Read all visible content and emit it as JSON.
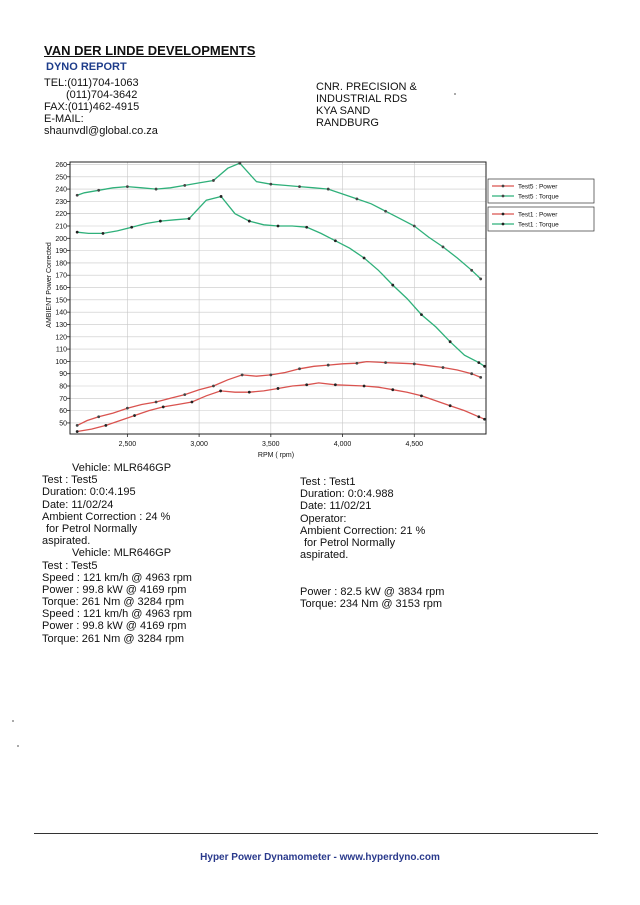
{
  "header": {
    "company": "VAN DER LINDE DEVELOPMENTS",
    "report_title": "DYNO REPORT",
    "contact_lines": [
      "TEL:(011)704-1063",
      "(011)704-3642",
      "FAX:(011)462-4915",
      "E-MAIL:",
      "shaunvdl@global.co.za"
    ],
    "address_lines": [
      "CNR. PRECISION &",
      "INDUSTRIAL RDS",
      "KYA SAND",
      "RANDBURG"
    ]
  },
  "chart_data": {
    "type": "line",
    "title": "",
    "xlabel": "RPM ( rpm)",
    "ylabel": "AMBIENT Power Corrected",
    "xlim": [
      2100,
      5000
    ],
    "ylim": [
      41,
      262
    ],
    "x_ticks": [
      2500,
      3000,
      3500,
      4000,
      4500
    ],
    "x_tick_labels": [
      "2,500",
      "3,000",
      "3,500",
      "4,000",
      "4,500"
    ],
    "y_ticks": [
      50,
      60,
      70,
      80,
      90,
      100,
      110,
      120,
      130,
      140,
      150,
      160,
      170,
      180,
      190,
      200,
      210,
      220,
      230,
      240,
      250,
      260
    ],
    "grid": true,
    "legend_position": "top-right",
    "series": [
      {
        "name": "Test5 : Power",
        "legend_group": "Test5",
        "color": "#d9534f",
        "marker_color": "#444444",
        "x": [
          2150,
          2220,
          2300,
          2400,
          2500,
          2600,
          2700,
          2800,
          2900,
          3000,
          3100,
          3200,
          3300,
          3400,
          3500,
          3600,
          3700,
          3800,
          3900,
          4000,
          4100,
          4169,
          4300,
          4400,
          4500,
          4600,
          4700,
          4800,
          4900,
          4963
        ],
        "values": [
          48,
          52,
          55,
          58,
          62,
          65,
          67,
          70,
          73,
          77,
          80,
          85,
          89,
          88,
          89,
          91,
          94,
          96,
          97,
          98,
          98.5,
          99.8,
          99,
          98.5,
          98,
          96.5,
          95,
          93,
          90,
          87
        ]
      },
      {
        "name": "Test5 : Torque",
        "legend_group": "Test5",
        "color": "#2fb07a",
        "marker_color": "#444444",
        "x": [
          2150,
          2200,
          2300,
          2400,
          2500,
          2600,
          2700,
          2800,
          2900,
          3000,
          3100,
          3200,
          3284,
          3400,
          3500,
          3600,
          3700,
          3800,
          3900,
          4000,
          4100,
          4200,
          4300,
          4400,
          4500,
          4600,
          4700,
          4800,
          4900,
          4963
        ],
        "values": [
          235,
          237,
          239,
          241,
          242,
          241,
          240,
          241,
          243,
          245,
          247,
          257,
          261,
          246,
          244,
          243,
          242,
          241,
          240,
          236,
          232,
          228,
          222,
          216,
          210,
          201,
          193,
          184,
          174,
          167
        ]
      },
      {
        "name": "Test1 : Power",
        "legend_group": "Test1",
        "color": "#d9534f",
        "marker_color": "#222222",
        "x": [
          2150,
          2250,
          2350,
          2450,
          2550,
          2650,
          2750,
          2850,
          2950,
          3050,
          3150,
          3250,
          3350,
          3450,
          3550,
          3650,
          3750,
          3834,
          3950,
          4050,
          4150,
          4250,
          4350,
          4450,
          4550,
          4650,
          4750,
          4850,
          4950,
          4990
        ],
        "values": [
          43,
          45,
          48,
          52,
          56,
          60,
          63,
          65,
          67,
          72,
          76,
          75,
          75,
          76,
          78,
          80,
          81,
          82.5,
          81,
          80.5,
          80,
          79,
          77,
          75,
          72,
          68,
          64,
          60,
          55,
          53
        ]
      },
      {
        "name": "Test1 : Torque",
        "legend_group": "Test1",
        "color": "#2fb07a",
        "marker_color": "#222222",
        "x": [
          2150,
          2230,
          2330,
          2430,
          2530,
          2630,
          2730,
          2830,
          2930,
          3050,
          3153,
          3250,
          3350,
          3450,
          3550,
          3650,
          3750,
          3850,
          3950,
          4050,
          4150,
          4250,
          4350,
          4450,
          4550,
          4650,
          4750,
          4850,
          4950,
          4990
        ],
        "values": [
          205,
          204,
          204,
          206,
          209,
          212,
          214,
          215,
          216,
          231,
          234,
          220,
          214,
          211,
          210,
          210,
          209,
          204,
          198,
          192,
          184,
          174,
          162,
          151,
          138,
          128,
          116,
          105,
          99,
          96
        ]
      }
    ]
  },
  "left_block": {
    "lines": [
      "Vehicle: MLR646GP",
      "Test    : Test5",
      "Duration: 0:0:4.195",
      "Date: 11/02/24",
      "Ambient Correction : 24 %",
      " for Petrol Normally",
      "aspirated.",
      "Vehicle: MLR646GP",
      "Test    : Test5",
      "Speed : 121 km/h @ 4963 rpm",
      "Power : 99.8 kW @ 4169 rpm",
      "Torque: 261 Nm @ 3284 rpm",
      "Speed : 121 km/h @ 4963 rpm",
      "Power : 99.8 kW @ 4169 rpm",
      "Torque: 261 Nm @ 3284 rpm"
    ]
  },
  "right_block": {
    "lines": [
      "Test    : Test1",
      "Duration: 0:0:4.988",
      "Date: 11/02/21",
      "Operator:",
      "Ambient Correction: 21 %",
      " for Petrol Normally",
      "aspirated."
    ],
    "results": [
      "Power : 82.5 kW @ 3834 rpm",
      "Torque: 234 Nm @ 3153 rpm"
    ]
  },
  "footer": {
    "text": "Hyper Power Dynamometer  -  www.hyperdyno.com"
  }
}
